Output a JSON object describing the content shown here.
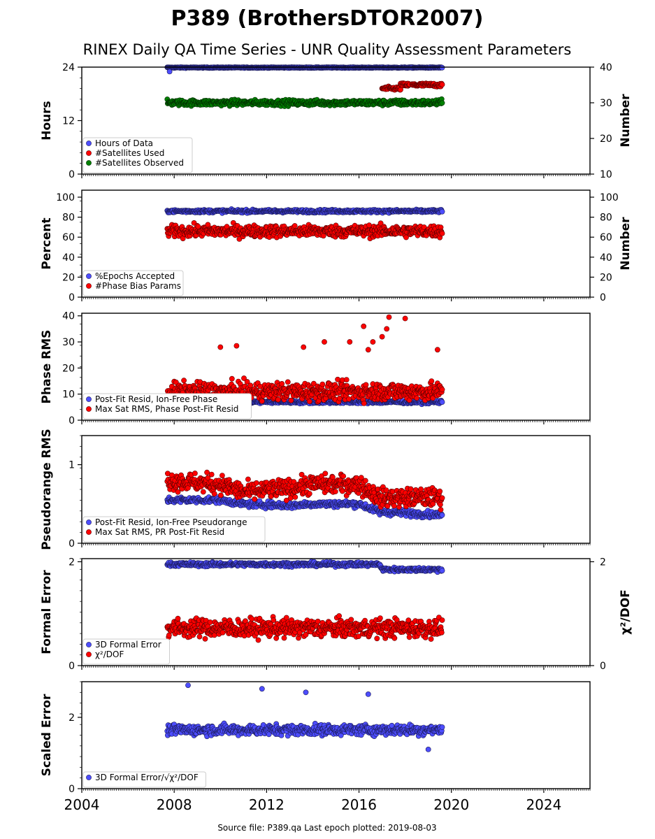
{
  "title": "P389 (BrothersDTOR2007)",
  "subtitle": "RINEX Daily QA Time Series - UNR Quality Assessment Parameters",
  "footer": "Source file: P389.qa Last epoch plotted: 2019-08-03",
  "colors": {
    "blue": "#4d4dff",
    "red": "#ff0000",
    "green": "#008000",
    "darkred": "#800000",
    "navy": "#1a1a7a"
  },
  "chart_data": [
    {
      "type": "scatter",
      "ylabel": "Hours",
      "y2label": "Number",
      "xlim": [
        2004.0,
        2026.0
      ],
      "ylim": [
        0,
        24
      ],
      "y2lim": [
        10,
        40
      ],
      "yticks": [
        0,
        12,
        24
      ],
      "y2ticks": [
        10,
        20,
        30,
        40
      ],
      "legend_position": "lower-left",
      "series": [
        {
          "name": "Hours of Data",
          "color": "#4d4dff",
          "axis": "left",
          "x_range": [
            2007.7,
            2019.6
          ],
          "level": 23.9,
          "spread": 0.1,
          "outliers": [
            [
              2007.8,
              23.0
            ]
          ]
        },
        {
          "name": "#Satellites Used",
          "color": "#ff0000",
          "axis": "right",
          "segments": [
            [
              2017.0,
              2017.8,
              34.0
            ],
            [
              2017.8,
              2018.2,
              35.0
            ],
            [
              2018.3,
              2019.6,
              35.0
            ]
          ],
          "spread": 0.6
        },
        {
          "name": "#Satellites Observed",
          "color": "#008000",
          "axis": "right",
          "x_range": [
            2007.7,
            2019.6
          ],
          "level": 30.0,
          "spread": 0.8
        }
      ]
    },
    {
      "type": "scatter",
      "ylabel": "Percent",
      "y2label": "Number",
      "xlim": [
        2004.0,
        2026.0
      ],
      "ylim": [
        0,
        107
      ],
      "y2lim": [
        0,
        107
      ],
      "yticks": [
        0,
        20,
        40,
        60,
        80,
        100
      ],
      "y2ticks": [
        0,
        20,
        40,
        60,
        80,
        100
      ],
      "legend_position": "lower-left",
      "series": [
        {
          "name": "%Epochs Accepted",
          "color": "#4d4dff",
          "axis": "left",
          "x_range": [
            2007.7,
            2019.6
          ],
          "level": 86.0,
          "spread": 1.5
        },
        {
          "name": "#Phase Bias Params",
          "color": "#ff0000",
          "axis": "right",
          "x_range": [
            2007.7,
            2019.6
          ],
          "level": 66.0,
          "spread": 6.0
        }
      ]
    },
    {
      "type": "scatter",
      "ylabel": "Phase RMS",
      "xlim": [
        2004.0,
        2026.0
      ],
      "ylim": [
        0,
        41
      ],
      "yticks": [
        0,
        10,
        20,
        30,
        40
      ],
      "legend_position": "lower-left",
      "series": [
        {
          "name": "Post-Fit Resid, Ion-Free Phase",
          "color": "#4d4dff",
          "x_range": [
            2007.7,
            2019.6
          ],
          "level": 7.0,
          "spread": 0.6
        },
        {
          "name": "Max Sat RMS, Phase Post-Fit Resid",
          "color": "#ff0000",
          "x_range": [
            2007.7,
            2019.6
          ],
          "level": 11.0,
          "spread": 3.5,
          "outliers": [
            [
              2017.3,
              39.5
            ],
            [
              2018.0,
              39.0
            ],
            [
              2016.2,
              36.0
            ],
            [
              2017.2,
              35.0
            ],
            [
              2017.0,
              32.0
            ],
            [
              2016.6,
              30.0
            ],
            [
              2015.6,
              30.0
            ],
            [
              2010.0,
              28.0
            ],
            [
              2010.7,
              28.5
            ],
            [
              2013.6,
              28.0
            ],
            [
              2014.5,
              30.0
            ],
            [
              2019.4,
              27.0
            ],
            [
              2016.4,
              27.0
            ]
          ]
        }
      ]
    },
    {
      "type": "scatter",
      "ylabel": "Pseudorange RMS",
      "xlim": [
        2004.0,
        2026.0
      ],
      "ylim": [
        0,
        1.37
      ],
      "yticks": [
        0,
        1
      ],
      "legend_position": "lower-left",
      "series": [
        {
          "name": "Post-Fit Resid, Ion-Free Pseudorange",
          "color": "#4d4dff",
          "profile": [
            [
              2007.7,
              0.55
            ],
            [
              2010.0,
              0.55
            ],
            [
              2011.0,
              0.5
            ],
            [
              2013.0,
              0.48
            ],
            [
              2014.0,
              0.5
            ],
            [
              2016.0,
              0.5
            ],
            [
              2016.9,
              0.4
            ],
            [
              2019.6,
              0.36
            ]
          ],
          "spread": 0.04
        },
        {
          "name": "Max Sat RMS, PR Post-Fit Resid",
          "color": "#ff0000",
          "profile": [
            [
              2007.7,
              0.8
            ],
            [
              2010.0,
              0.75
            ],
            [
              2011.0,
              0.65
            ],
            [
              2013.0,
              0.7
            ],
            [
              2014.0,
              0.75
            ],
            [
              2016.0,
              0.75
            ],
            [
              2016.9,
              0.58
            ],
            [
              2019.6,
              0.58
            ]
          ],
          "spread": 0.12
        }
      ]
    },
    {
      "type": "scatter",
      "ylabel": "Formal Error",
      "y2label": "χ²/DOF",
      "xlim": [
        2004.0,
        2026.0
      ],
      "ylim": [
        0,
        2.06
      ],
      "y2lim": [
        0,
        2.06
      ],
      "yticks": [
        0,
        2
      ],
      "y2ticks": [
        0,
        2
      ],
      "legend_position": "lower-left",
      "series": [
        {
          "name": "3D Formal Error",
          "color": "#4d4dff",
          "axis": "left",
          "profile": [
            [
              2007.7,
              1.95
            ],
            [
              2016.9,
              1.95
            ],
            [
              2017.0,
              1.85
            ],
            [
              2019.6,
              1.85
            ]
          ],
          "spread": 0.04
        },
        {
          "name": "χ²/DOF",
          "color": "#ff0000",
          "axis": "right",
          "x_range": [
            2007.7,
            2019.6
          ],
          "level": 0.72,
          "spread": 0.18
        }
      ]
    },
    {
      "type": "scatter",
      "ylabel": "Scaled Error",
      "xlim": [
        2004.0,
        2026.0
      ],
      "ylim": [
        0,
        3.0
      ],
      "yticks": [
        0,
        2
      ],
      "legend_position": "lower-left",
      "xticks": [
        "2004",
        "2008",
        "2012",
        "2016",
        "2020",
        "2024"
      ],
      "series": [
        {
          "name": "3D Formal Error/√χ²/DOF",
          "color": "#4d4dff",
          "x_range": [
            2007.7,
            2019.6
          ],
          "level": 1.65,
          "spread": 0.15,
          "outliers": [
            [
              2008.6,
              2.9
            ],
            [
              2011.8,
              2.8
            ],
            [
              2013.7,
              2.7
            ],
            [
              2016.4,
              2.65
            ],
            [
              2019.0,
              1.1
            ]
          ]
        }
      ]
    }
  ]
}
